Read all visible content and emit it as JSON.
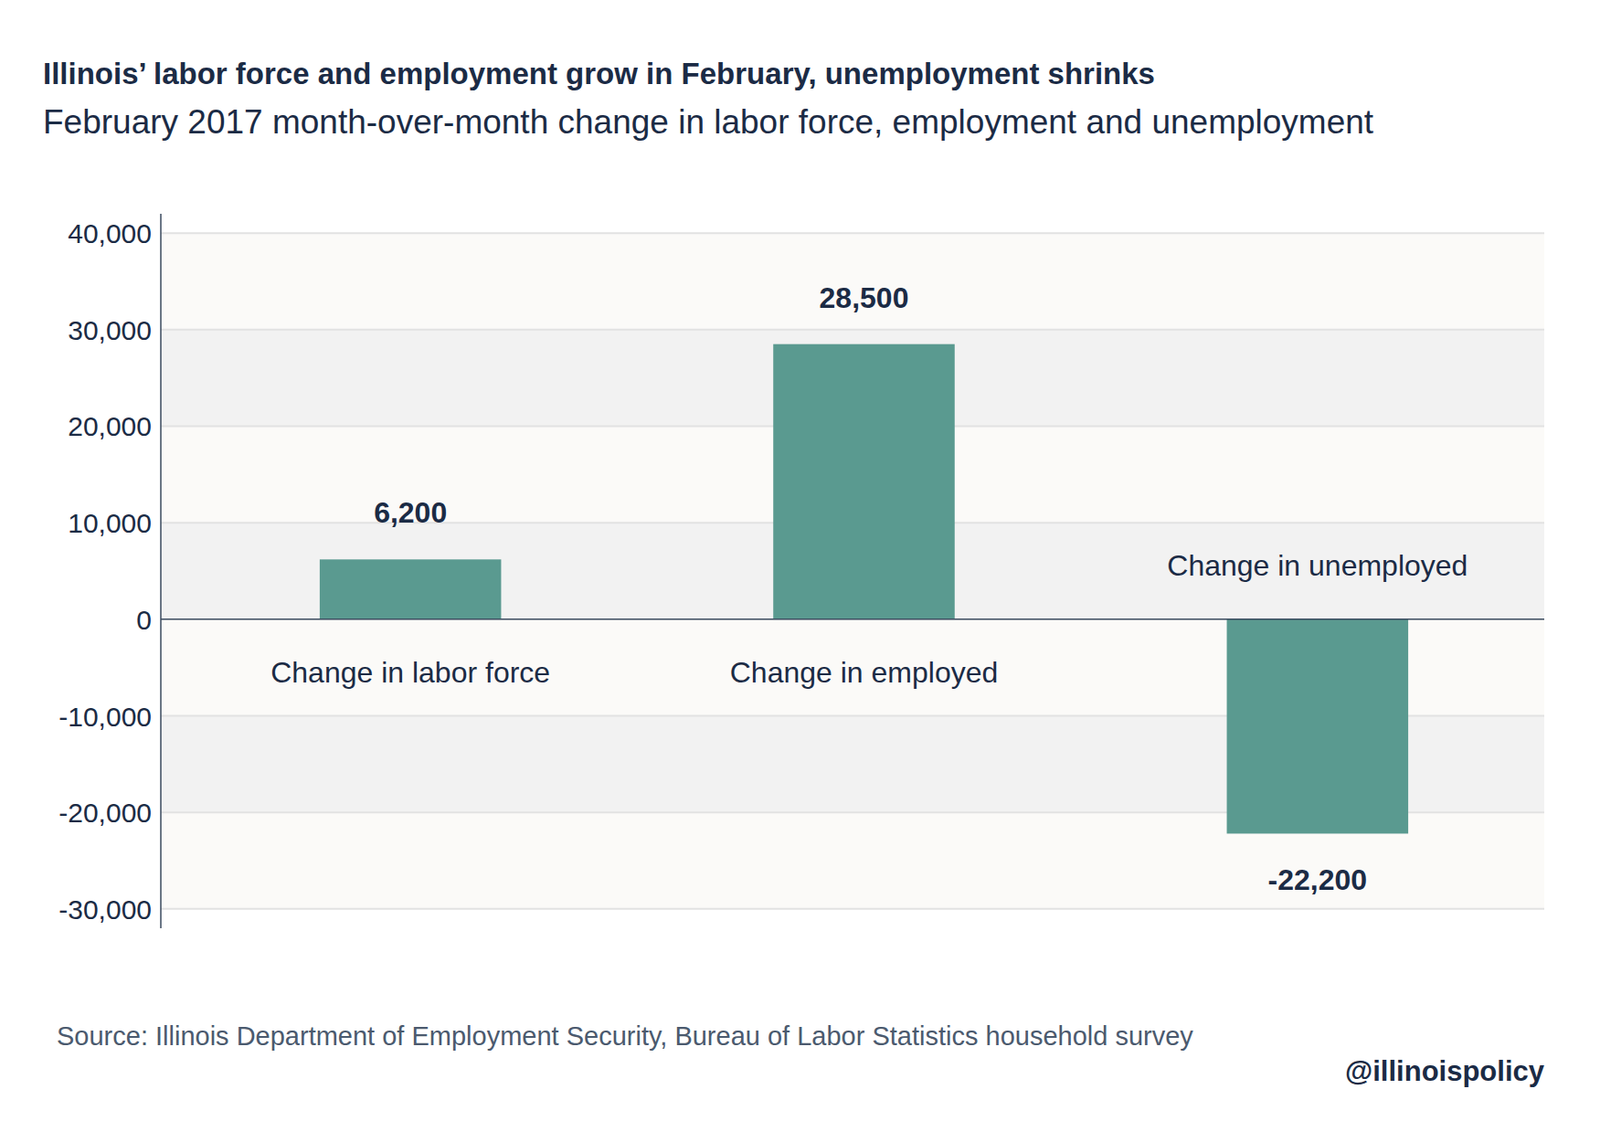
{
  "chart_data": {
    "type": "bar",
    "title": "Illinois’ labor force and employment grow in February, unemployment shrinks",
    "subtitle": "February 2017 month-over-month change in labor force, employment and unemployment",
    "categories": [
      "Change in labor force",
      "Change in employed",
      "Change in unemployed"
    ],
    "values": [
      6200,
      28500,
      -22200
    ],
    "value_labels": [
      "6,200",
      "28,500",
      "-22,200"
    ],
    "color": "#5a9a90",
    "ylim": [
      -32000,
      42000
    ],
    "yticks": [
      {
        "value": -30000,
        "label": "-30,000"
      },
      {
        "value": -20000,
        "label": "-20,000"
      },
      {
        "value": -10000,
        "label": "-10,000"
      },
      0,
      {
        "value": 10000,
        "label": "10,000"
      },
      {
        "value": 20000,
        "label": "20,000"
      },
      {
        "value": 30000,
        "label": "30,000"
      },
      {
        "value": 40000,
        "label": "40,000"
      }
    ],
    "grid": true,
    "data_labels": true,
    "source": "Source: Illinois Department of Employment Security, Bureau of Labor Statistics household survey",
    "credit": "@illinoispolicy"
  }
}
